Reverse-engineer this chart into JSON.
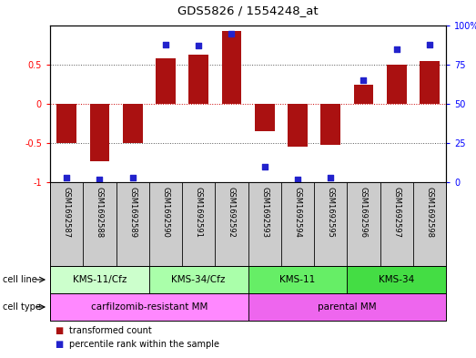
{
  "title": "GDS5826 / 1554248_at",
  "samples": [
    "GSM1692587",
    "GSM1692588",
    "GSM1692589",
    "GSM1692590",
    "GSM1692591",
    "GSM1692592",
    "GSM1692593",
    "GSM1692594",
    "GSM1692595",
    "GSM1692596",
    "GSM1692597",
    "GSM1692598"
  ],
  "transformed_count": [
    -0.5,
    -0.73,
    -0.5,
    0.58,
    0.63,
    0.93,
    -0.35,
    -0.55,
    -0.52,
    0.25,
    0.5,
    0.55
  ],
  "percentile_rank": [
    3,
    2,
    3,
    88,
    87,
    95,
    10,
    2,
    3,
    65,
    85,
    88
  ],
  "cell_line_groups": [
    {
      "label": "KMS-11/Cfz",
      "start": 0,
      "end": 3,
      "color": "#ccffcc"
    },
    {
      "label": "KMS-34/Cfz",
      "start": 3,
      "end": 6,
      "color": "#aaffaa"
    },
    {
      "label": "KMS-11",
      "start": 6,
      "end": 9,
      "color": "#66ee66"
    },
    {
      "label": "KMS-34",
      "start": 9,
      "end": 12,
      "color": "#44dd44"
    }
  ],
  "cell_type_groups": [
    {
      "label": "carfilzomib-resistant MM",
      "start": 0,
      "end": 6,
      "color": "#ff88ff"
    },
    {
      "label": "parental MM",
      "start": 6,
      "end": 12,
      "color": "#ee66ee"
    }
  ],
  "bar_color": "#aa1111",
  "dot_color": "#2222cc",
  "ylim_left": [
    -1.0,
    1.0
  ],
  "ylim_right": [
    0,
    100
  ],
  "yticks_left": [
    -1.0,
    -0.5,
    0.0,
    0.5
  ],
  "ytick_labels_left": [
    "-1",
    "-0.5",
    "0",
    "0.5"
  ],
  "yticks_right": [
    0,
    25,
    50,
    75,
    100
  ],
  "ytick_labels_right": [
    "0",
    "25",
    "50",
    "75",
    "100%"
  ],
  "sample_box_color": "#cccccc",
  "dotted_line_color": "#555555",
  "zero_line_color": "#cc0000",
  "bar_width": 0.6,
  "dot_size": 15
}
